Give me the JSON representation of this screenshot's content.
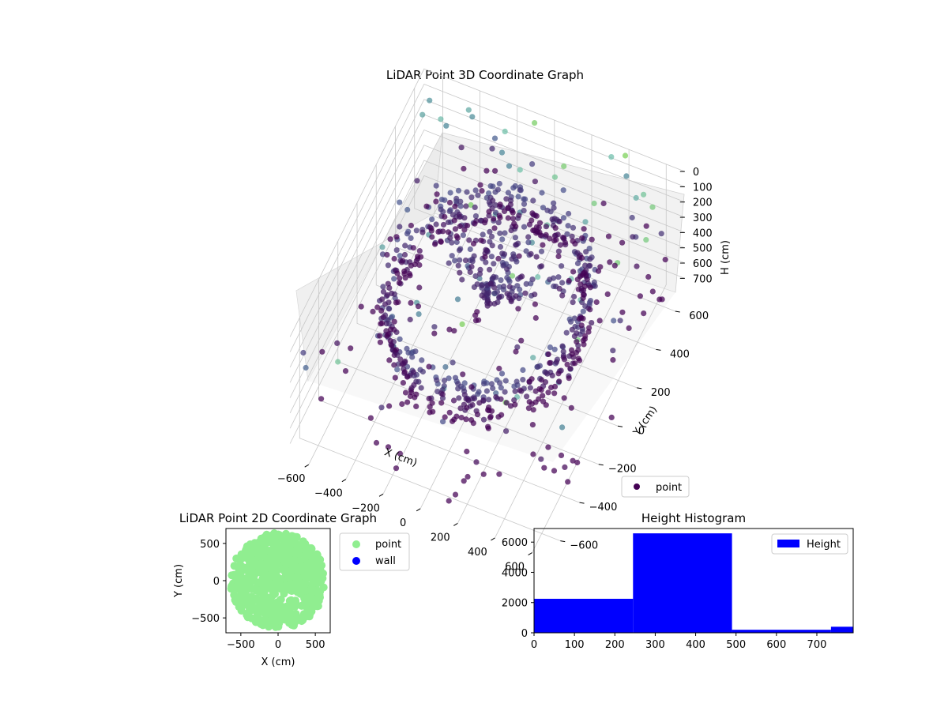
{
  "chart_data": [
    {
      "type": "scatter",
      "title": "LiDAR Point 3D Coordinate Graph",
      "xlabel": "X (cm)",
      "ylabel": "Y (cm)",
      "zlabel": "H (cm)",
      "x_ticks": [
        -600,
        -400,
        -200,
        0,
        200,
        400,
        600
      ],
      "y_ticks": [
        -600,
        -400,
        -200,
        0,
        200,
        400,
        600
      ],
      "z_ticks": [
        0,
        100,
        200,
        300,
        400,
        500,
        600,
        700
      ],
      "xlim": [
        -700,
        700
      ],
      "ylim": [
        -700,
        700
      ],
      "zlim": [
        0,
        790
      ],
      "z_inverted": true,
      "colormap": "viridis",
      "legend": {
        "position": "lower-right",
        "entries": [
          {
            "label": "point",
            "color": "#440154"
          }
        ]
      },
      "series": [
        {
          "name": "point",
          "description_points": "dense ring of points near H 250-450 cm around radius ~500 cm plus sparse scattered points",
          "color": "#440154"
        }
      ]
    },
    {
      "type": "scatter",
      "title": "LiDAR Point 2D Coordinate Graph",
      "xlabel": "X (cm)",
      "ylabel": "Y (cm)",
      "x_ticks": [
        -500,
        0,
        500
      ],
      "y_ticks": [
        -500,
        0,
        500
      ],
      "xlim": [
        -700,
        700
      ],
      "ylim": [
        -700,
        700
      ],
      "legend": {
        "position": "outside-right",
        "entries": [
          {
            "label": "point",
            "color": "#90ee90"
          },
          {
            "label": "wall",
            "color": "#0000ff"
          }
        ]
      }
    },
    {
      "type": "bar",
      "title": "Height Histogram",
      "xlabel": "",
      "ylabel": "",
      "x_ticks": [
        0,
        100,
        200,
        300,
        400,
        500,
        600,
        700
      ],
      "y_ticks": [
        0,
        2000,
        4000,
        6000
      ],
      "xlim": [
        0,
        790
      ],
      "ylim": [
        0,
        6900
      ],
      "bar_color": "#0000ff",
      "legend": {
        "position": "top-right",
        "entries": [
          {
            "label": "Height",
            "color": "#0000ff"
          }
        ]
      },
      "bins": [
        {
          "from": 0,
          "to": 245,
          "count": 2250
        },
        {
          "from": 245,
          "to": 490,
          "count": 6580
        },
        {
          "from": 490,
          "to": 735,
          "count": 200
        },
        {
          "from": 735,
          "to": 790,
          "count": 400
        }
      ]
    }
  ]
}
